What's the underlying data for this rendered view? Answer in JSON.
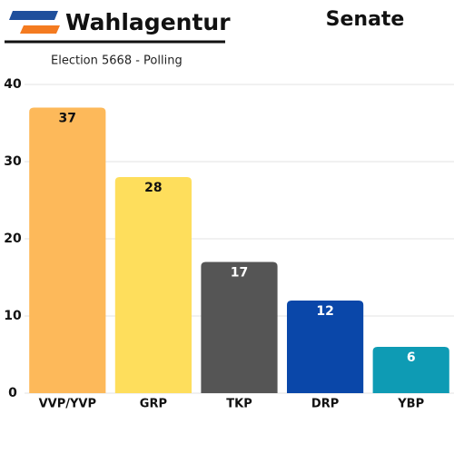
{
  "chart_data": {
    "type": "bar",
    "brand": "Wahlagentur",
    "title": "Senate",
    "subtitle": "Election 5668 - Polling",
    "categories": [
      "VVP/YVP",
      "GRP",
      "TKP",
      "DRP",
      "YBP"
    ],
    "values": [
      37,
      28,
      17,
      12,
      6
    ],
    "colors": [
      "#fdb95a",
      "#fede5c",
      "#555555",
      "#0a47a9",
      "#0e9bb4"
    ],
    "ylim": [
      0,
      40
    ],
    "yticks": [
      0,
      10,
      20,
      30,
      40
    ],
    "grid": true
  }
}
